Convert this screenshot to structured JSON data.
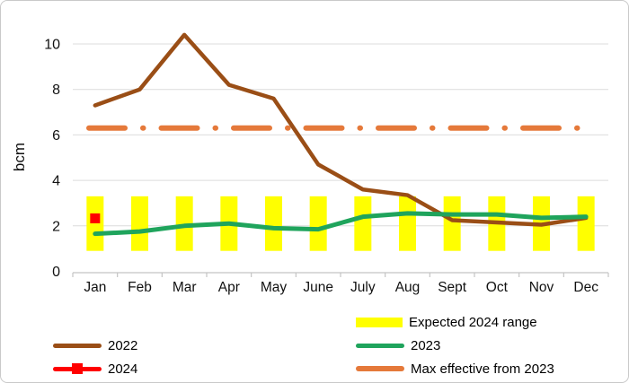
{
  "chart_data": {
    "type": "line",
    "title": "",
    "xlabel": "",
    "ylabel": "bcm",
    "ylim": [
      0,
      11
    ],
    "yticks": [
      0,
      2,
      4,
      6,
      8,
      10
    ],
    "grid": true,
    "legend_position": "bottom",
    "categories": [
      "Jan",
      "Feb",
      "Mar",
      "Apr",
      "May",
      "June",
      "July",
      "Aug",
      "Sept",
      "Oct",
      "Nov",
      "Dec"
    ],
    "series": [
      {
        "name": "2022",
        "type": "line",
        "color": "#9A4E16",
        "values": [
          7.3,
          8.0,
          10.4,
          8.2,
          7.6,
          4.7,
          3.6,
          3.35,
          2.25,
          2.15,
          2.05,
          2.35
        ]
      },
      {
        "name": "2023",
        "type": "line",
        "color": "#1FA45C",
        "values": [
          1.65,
          1.75,
          2.0,
          2.1,
          1.9,
          1.85,
          2.4,
          2.55,
          2.5,
          2.5,
          2.35,
          2.4
        ]
      },
      {
        "name": "2024",
        "type": "line-with-square-marker",
        "color": "#FF0000",
        "values": [
          2.33,
          null,
          null,
          null,
          null,
          null,
          null,
          null,
          null,
          null,
          null,
          null
        ]
      },
      {
        "name": "Expected 2024 range",
        "type": "bar-range",
        "color": "#FFFF00",
        "low": 0.9,
        "high": 3.3,
        "months": "all"
      },
      {
        "name": "Max effective from 2023",
        "type": "dash-dot-line",
        "color": "#E5793A",
        "value": 6.3
      }
    ]
  },
  "style_colors": {
    "gridline": "#DCDCDC",
    "axis": "#C4C4C4",
    "text": "#111111"
  }
}
